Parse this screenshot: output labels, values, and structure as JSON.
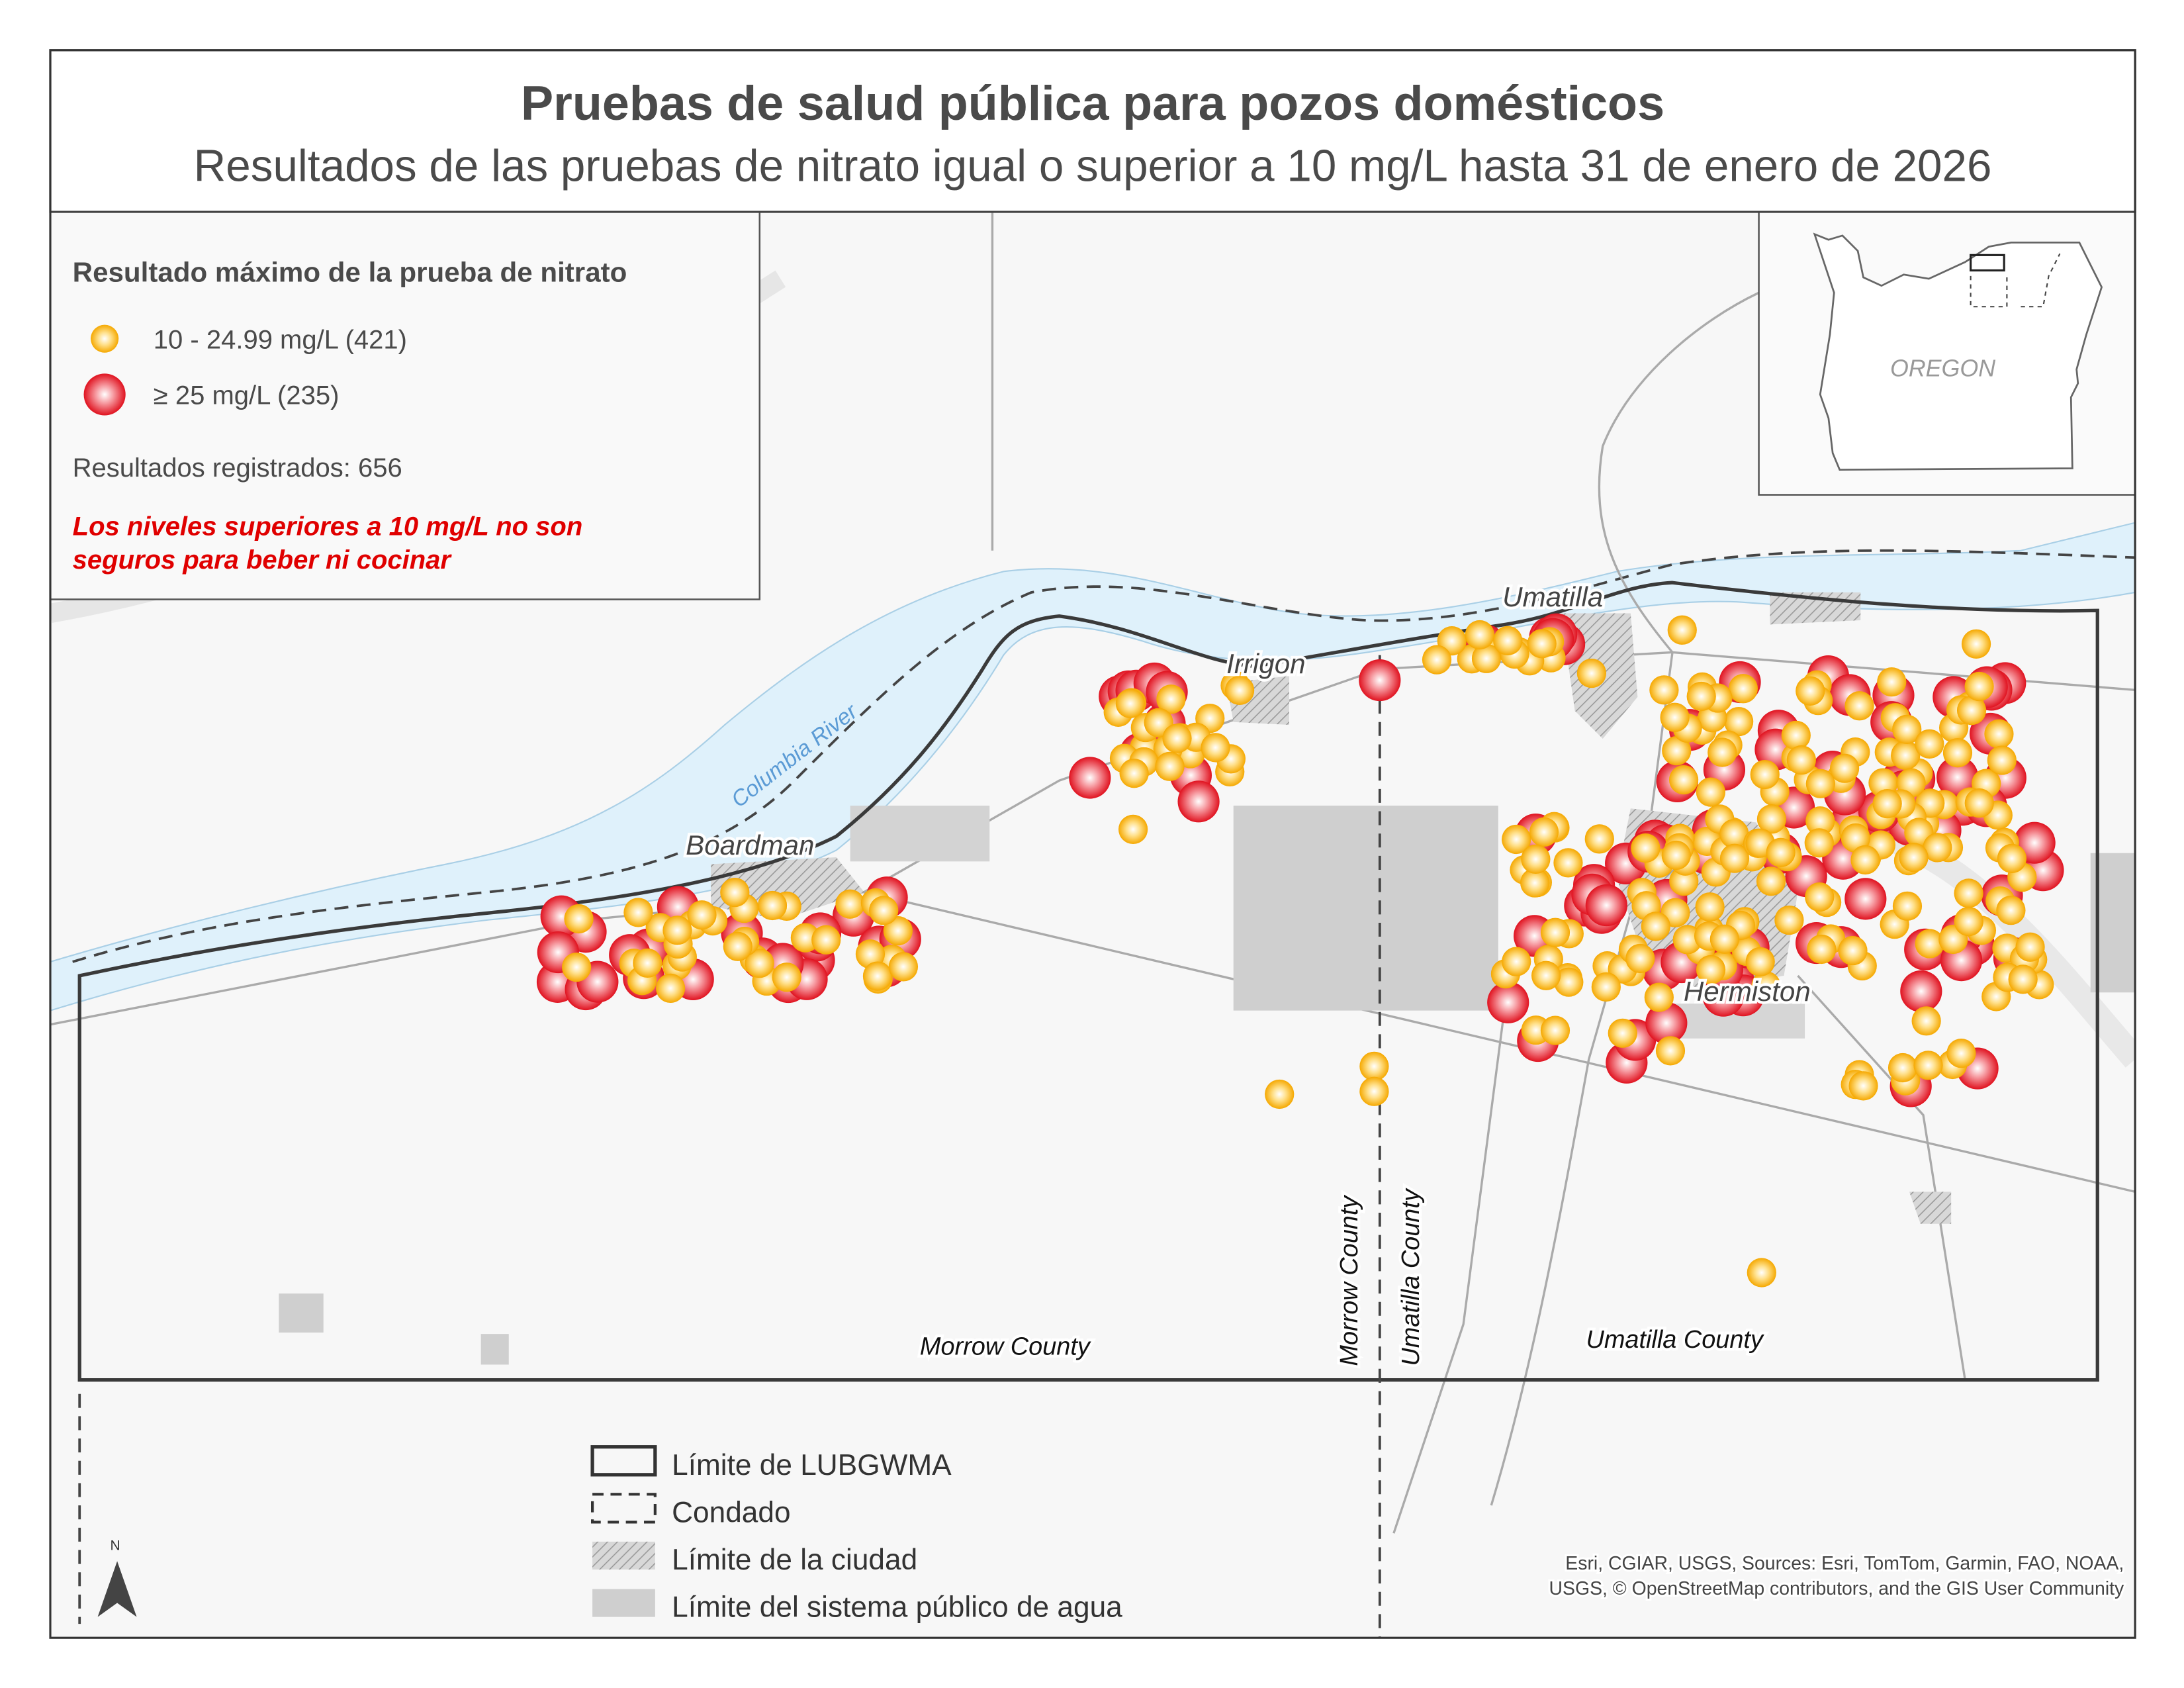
{
  "title": "Pruebas de salud pública para pozos domésticos",
  "subtitle": "Resultados de las pruebas de nitrato igual o superior a 10 mg/L hasta 31 de enero de 2026",
  "legend": {
    "heading": "Resultado máximo de la prueba de nitrato",
    "classes": [
      {
        "label": "10 - 24.99 mg/L (421)",
        "count": 421,
        "color": "#f5a800",
        "icon": "orange-circle"
      },
      {
        "label": "≥ 25 mg/L (235)",
        "count": 235,
        "color": "#e0121f",
        "icon": "red-circle"
      }
    ],
    "total": "Resultados registrados: 656",
    "warning_line1": "Los niveles superiores a 10 mg/L no son",
    "warning_line2": "seguros para beber ni cocinar"
  },
  "map": {
    "places": [
      "Boardman",
      "Irrigon",
      "Umatilla",
      "Hermiston"
    ],
    "river": "Columbia River",
    "counties": [
      "Morrow County",
      "Umatilla County"
    ],
    "county_vertical": [
      "Morrow County",
      "Umatilla County"
    ],
    "colors": {
      "water": "#dff1fb",
      "boundary": "#3a3a3a",
      "public_water": "#cfcfcf",
      "background": "#f7f7f7"
    }
  },
  "inset": {
    "label": "OREGON"
  },
  "boundary_legend": [
    {
      "label": "Límite de LUBGWMA",
      "icon": "solid-box"
    },
    {
      "label": "Condado",
      "icon": "dashed-box"
    },
    {
      "label": "Límite de la ciudad",
      "icon": "hatched-box"
    },
    {
      "label": "Límite del sistema público de agua",
      "icon": "gray-box"
    }
  ],
  "north_arrow": "N",
  "attribution": [
    "Esri, CGIAR, USGS, Sources: Esri, TomTom, Garmin, FAO, NOAA,",
    "USGS, © OpenStreetMap contributors, and the GIS User Community"
  ]
}
